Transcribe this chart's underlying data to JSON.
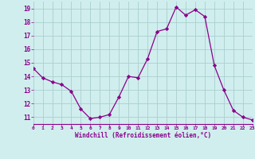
{
  "x": [
    0,
    1,
    2,
    3,
    4,
    5,
    6,
    7,
    8,
    9,
    10,
    11,
    12,
    13,
    14,
    15,
    16,
    17,
    18,
    19,
    20,
    21,
    22,
    23
  ],
  "y": [
    14.6,
    13.9,
    13.6,
    13.4,
    12.9,
    11.6,
    10.9,
    11.0,
    11.2,
    12.5,
    14.0,
    13.9,
    15.3,
    17.3,
    17.5,
    19.1,
    18.5,
    18.9,
    18.4,
    14.8,
    13.0,
    11.5,
    11.0,
    10.8
  ],
  "line_color": "#8B008B",
  "marker_color": "#8B008B",
  "bg_color": "#d0eeee",
  "grid_color": "#aacece",
  "xlabel": "Windchill (Refroidissement éolien,°C)",
  "tick_color": "#8B008B",
  "yticks": [
    11,
    12,
    13,
    14,
    15,
    16,
    17,
    18,
    19
  ],
  "xticks": [
    0,
    1,
    2,
    3,
    4,
    5,
    6,
    7,
    8,
    9,
    10,
    11,
    12,
    13,
    14,
    15,
    16,
    17,
    18,
    19,
    20,
    21,
    22,
    23
  ],
  "xlim": [
    0,
    23
  ],
  "ylim": [
    10.5,
    19.5
  ]
}
